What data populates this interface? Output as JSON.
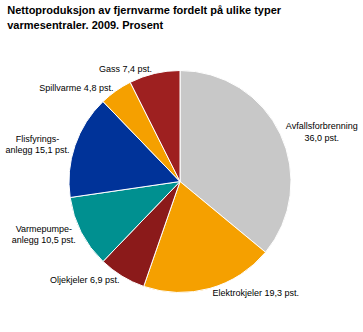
{
  "chart_data": {
    "type": "pie",
    "title": "Nettoproduksjon av fjernvarme fordelt på ulike typer\nvarmesentraler. 2009. Prosent",
    "categories": [
      "Avfallsforbrenning\n36,0 pst.",
      "Elektrokjeler 19,3 pst.",
      "Oljekjeler 6,9 pst.",
      "Varmepumpe-\nanlegg 10,5 pst.",
      "Flisfyrings-\nanlegg 15,1 pst.",
      "Spillvarme 4,8 pst.",
      "Gass 7,4 pst."
    ],
    "values": [
      36.0,
      19.3,
      6.9,
      10.5,
      15.1,
      4.8,
      7.4
    ],
    "colors": [
      "#c8c8c8",
      "#f5a000",
      "#8b1a1a",
      "#009090",
      "#003399",
      "#f5a000",
      "#9e2020"
    ]
  }
}
